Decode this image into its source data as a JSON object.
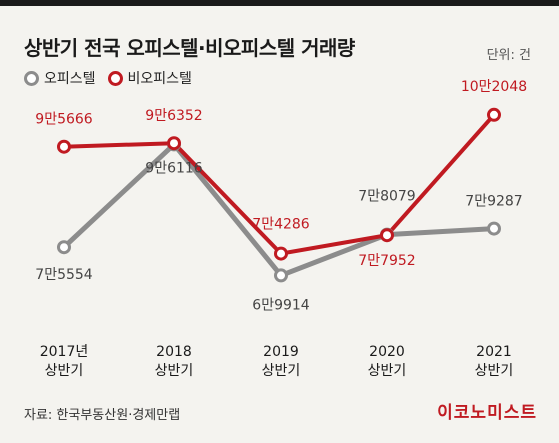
{
  "header": {
    "title": "상반기 전국 오피스텔·비오피스텔 거래량",
    "unit": "단위: 건"
  },
  "footer": {
    "source": "자료: 한국부동산원·경제만랩",
    "brand": "이코노미스트"
  },
  "colors": {
    "office": "#8c8c8c",
    "nonOffice": "#c01a21"
  },
  "chart_data": {
    "type": "line",
    "title": "상반기 전국 오피스텔·비오피스텔 거래량",
    "unit": "단위: 건",
    "categories": [
      [
        "2017년",
        "상반기"
      ],
      [
        "2018",
        "상반기"
      ],
      [
        "2019",
        "상반기"
      ],
      [
        "2020",
        "상반기"
      ],
      [
        "2021",
        "상반기"
      ]
    ],
    "series": [
      {
        "name": "오피스텔",
        "color": "#8c8c8c",
        "values": [
          75554,
          96116,
          69914,
          78079,
          79287
        ],
        "labels": [
          "7만5554",
          "9만6116",
          "6만9914",
          "7만8079",
          "7만9287"
        ]
      },
      {
        "name": "비오피스텔",
        "color": "#c01a21",
        "values": [
          95666,
          96352,
          74286,
          77952,
          102048
        ],
        "labels": [
          "9만5666",
          "9만6352",
          "7만4286",
          "7만7952",
          "10만2048"
        ]
      }
    ],
    "ylim": [
      65000,
      105000
    ],
    "grid": false,
    "legend": "top-left"
  }
}
